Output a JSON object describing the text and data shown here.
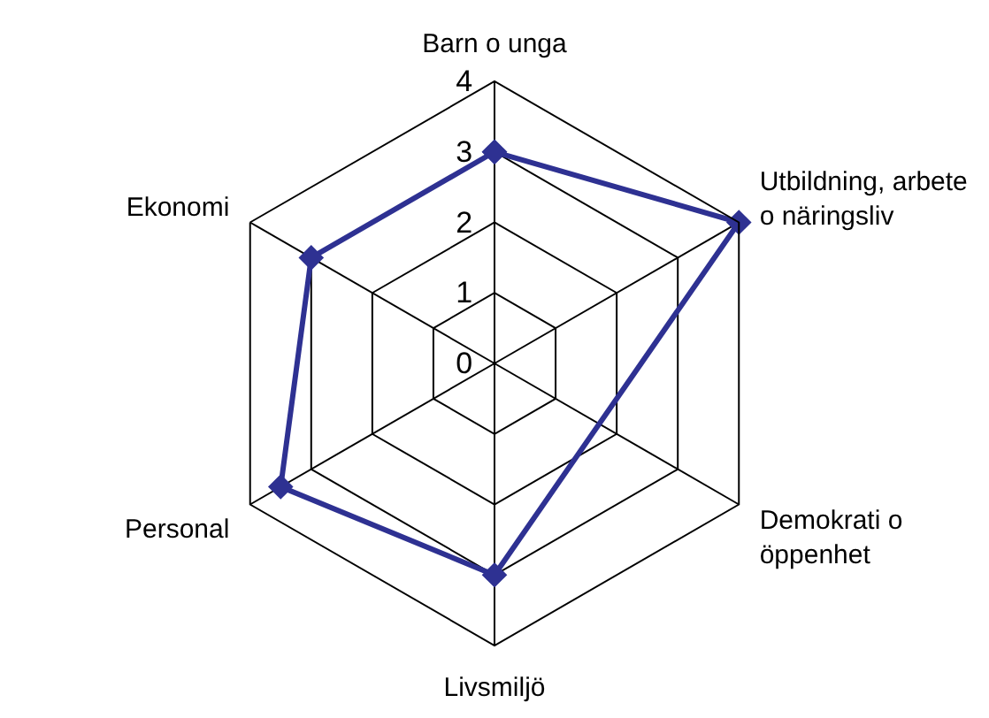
{
  "chart_data": {
    "type": "radar",
    "categories": [
      "Barn o unga",
      "Utbildning, arbete o näringsliv",
      "Demokrati o öppenhet",
      "Livsmiljö",
      "Personal",
      "Ekonomi"
    ],
    "series": [
      {
        "color": "#2e3192",
        "values": [
          3,
          4,
          null,
          3,
          3.5,
          3
        ]
      }
    ],
    "ylim": [
      0,
      4
    ],
    "yticks": [
      0,
      1,
      2,
      3,
      4
    ],
    "grid": true,
    "marker": "diamond"
  }
}
